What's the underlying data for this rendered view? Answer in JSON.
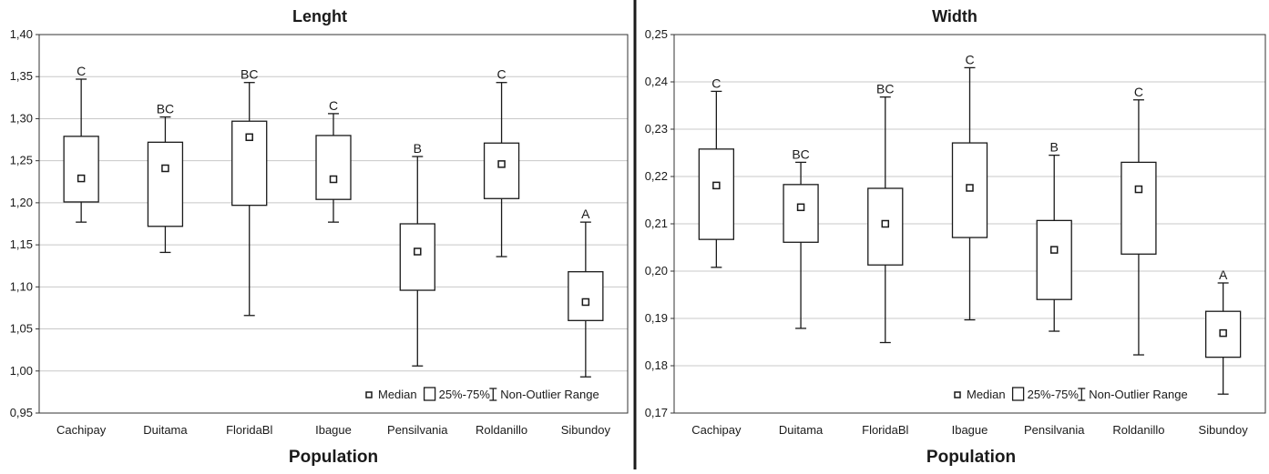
{
  "chart_data": [
    {
      "type": "box",
      "title": "Lenght",
      "xlabel": "Population",
      "ylim": [
        0.95,
        1.4
      ],
      "yticks": [
        "0,95",
        "1,00",
        "1,05",
        "1,10",
        "1,15",
        "1,20",
        "1,25",
        "1,30",
        "1,35",
        "1,40"
      ],
      "grid": true,
      "legend_position": "bottom-right",
      "legend": [
        "Median",
        "25%-75%",
        "Non-Outlier Range"
      ],
      "categories": [
        "Cachipay",
        "Duitama",
        "FloridaBl",
        "Ibague",
        "Pensilvania",
        "Roldanillo",
        "Sibundoy"
      ],
      "series": [
        {
          "category": "Cachipay",
          "min": 1.177,
          "q1": 1.201,
          "median": 1.229,
          "q3": 1.279,
          "max": 1.347,
          "group": "C"
        },
        {
          "category": "Duitama",
          "min": 1.141,
          "q1": 1.172,
          "median": 1.241,
          "q3": 1.272,
          "max": 1.302,
          "group": "BC"
        },
        {
          "category": "FloridaBl",
          "min": 1.066,
          "q1": 1.197,
          "median": 1.278,
          "q3": 1.297,
          "max": 1.343,
          "group": "BC"
        },
        {
          "category": "Ibague",
          "min": 1.177,
          "q1": 1.204,
          "median": 1.228,
          "q3": 1.28,
          "max": 1.306,
          "group": "C"
        },
        {
          "category": "Pensilvania",
          "min": 1.006,
          "q1": 1.096,
          "median": 1.142,
          "q3": 1.175,
          "max": 1.255,
          "group": "B"
        },
        {
          "category": "Roldanillo",
          "min": 1.136,
          "q1": 1.205,
          "median": 1.246,
          "q3": 1.271,
          "max": 1.343,
          "group": "C"
        },
        {
          "category": "Sibundoy",
          "min": 0.993,
          "q1": 1.06,
          "median": 1.082,
          "q3": 1.118,
          "max": 1.177,
          "group": "A"
        }
      ]
    },
    {
      "type": "box",
      "title": "Width",
      "xlabel": "Population",
      "ylim": [
        0.17,
        0.25
      ],
      "yticks": [
        "0,17",
        "0,18",
        "0,19",
        "0,20",
        "0,21",
        "0,22",
        "0,23",
        "0,24",
        "0,25"
      ],
      "grid": true,
      "legend_position": "bottom-right",
      "legend": [
        "Median",
        "25%-75%",
        "Non-Outlier Range"
      ],
      "categories": [
        "Cachipay",
        "Duitama",
        "FloridaBl",
        "Ibague",
        "Pensilvania",
        "Roldanillo",
        "Sibundoy"
      ],
      "series": [
        {
          "category": "Cachipay",
          "min": 0.2008,
          "q1": 0.2067,
          "median": 0.2181,
          "q3": 0.2258,
          "max": 0.238,
          "group": "C"
        },
        {
          "category": "Duitama",
          "min": 0.1879,
          "q1": 0.2061,
          "median": 0.2135,
          "q3": 0.2183,
          "max": 0.223,
          "group": "BC"
        },
        {
          "category": "FloridaBl",
          "min": 0.1849,
          "q1": 0.2013,
          "median": 0.21,
          "q3": 0.2175,
          "max": 0.2368,
          "group": "BC"
        },
        {
          "category": "Ibague",
          "min": 0.1897,
          "q1": 0.2071,
          "median": 0.2176,
          "q3": 0.2271,
          "max": 0.243,
          "group": "C"
        },
        {
          "category": "Pensilvania",
          "min": 0.1873,
          "q1": 0.194,
          "median": 0.2045,
          "q3": 0.2107,
          "max": 0.2245,
          "group": "B"
        },
        {
          "category": "Roldanillo",
          "min": 0.1823,
          "q1": 0.2036,
          "median": 0.2173,
          "q3": 0.223,
          "max": 0.2362,
          "group": "C"
        },
        {
          "category": "Sibundoy",
          "min": 0.174,
          "q1": 0.1818,
          "median": 0.1869,
          "q3": 0.1915,
          "max": 0.1975,
          "group": "A"
        }
      ]
    }
  ]
}
